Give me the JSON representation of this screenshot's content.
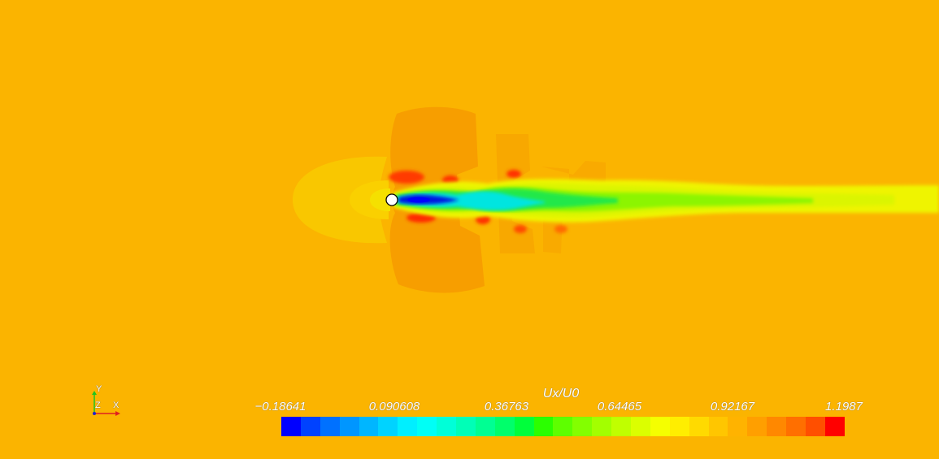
{
  "colorbar": {
    "title": "Ux/U0",
    "ticks": [
      "−0.18641",
      "0.090608",
      "0.36763",
      "0.64465",
      "0.92167",
      "1.1987"
    ],
    "colors": [
      "#0000FF",
      "#0042FF",
      "#0071FF",
      "#0096FF",
      "#00B6FF",
      "#00D3FF",
      "#00EFFF",
      "#00FFF6",
      "#00FFD8",
      "#00FFB7",
      "#00FF93",
      "#00FF6B",
      "#00FF3B",
      "#2BFF00",
      "#5EFF00",
      "#83FF00",
      "#A3FF00",
      "#C0FF00",
      "#DBFF00",
      "#F5FF00",
      "#FFEE00",
      "#FFDA00",
      "#FFC600",
      "#FFB300",
      "#FF9F00",
      "#FF8800",
      "#FF6F00",
      "#FF4F00",
      "#FF0000"
    ]
  },
  "axes": {
    "y": "Y",
    "z": "Z",
    "x": "X"
  },
  "field": {
    "background": "#FBB400",
    "cylinder_fill": "#FFFFFF"
  }
}
